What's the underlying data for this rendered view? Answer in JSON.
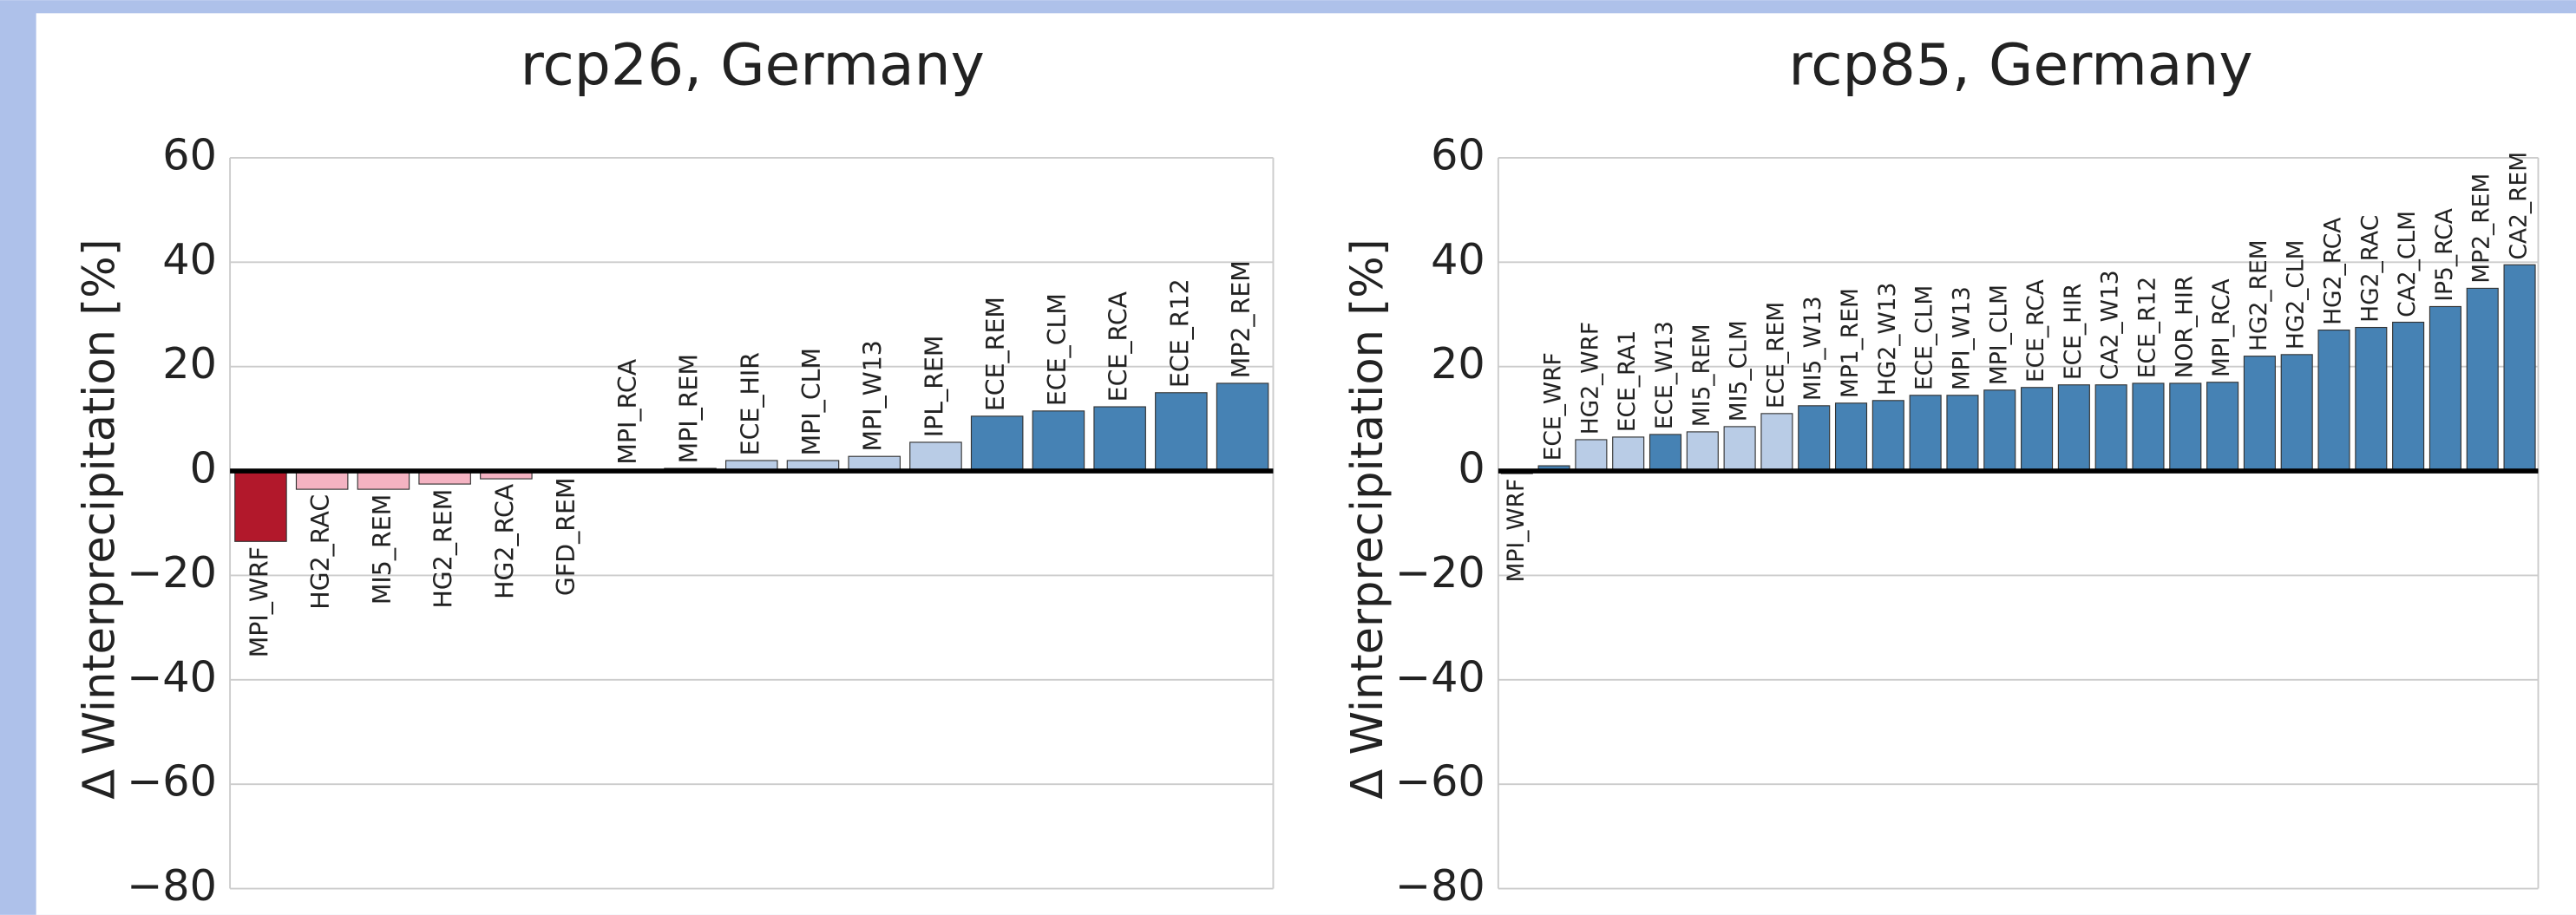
{
  "chart_data": [
    {
      "type": "bar",
      "title": "rcp26, Germany",
      "y_label": "Δ Winterprecipitation [%]",
      "categories": [
        "MPI_WRF",
        "HG2_RAC",
        "MI5_REM",
        "HG2_REM",
        "HG2_RCA",
        "GFD_REM",
        "MPI_RCA",
        "MPI_REM",
        "ECE_HIR",
        "MPI_CLM",
        "MPI_W13",
        "IPL_REM",
        "ECE_REM",
        "ECE_CLM",
        "ECE_RCA",
        "ECE_R12",
        "MP2_REM"
      ],
      "values": [
        -13.5,
        -3.5,
        -3.5,
        -2.5,
        -1.5,
        -0.3,
        0.3,
        0.5,
        2,
        2,
        2.8,
        5.5,
        10.5,
        11.5,
        12.3,
        15,
        16.8
      ],
      "colors": [
        "#b2182b",
        "#f4b3c2",
        "#f4b3c2",
        "#f4b3c2",
        "#f4b3c2",
        "#f4b3c2",
        "#b9cce6",
        "#b9cce6",
        "#b9cce6",
        "#b9cce6",
        "#b9cce6",
        "#b9cce6",
        "#4682b4",
        "#4682b4",
        "#4682b4",
        "#4682b4",
        "#4682b4"
      ],
      "ylim": [
        -80,
        60
      ],
      "yticks": [
        {
          "value": -80,
          "label": "−80"
        },
        {
          "value": -60,
          "label": "−60"
        },
        {
          "value": -40,
          "label": "−40"
        },
        {
          "value": -20,
          "label": "−20"
        },
        0,
        20,
        40,
        60
      ],
      "grid": true
    },
    {
      "type": "bar",
      "title": "rcp85, Germany",
      "y_label": "Δ Winterprecipitation [%]",
      "categories": [
        "MPI_WRF",
        "ECE_WRF",
        "HG2_WRF",
        "ECE_RA1",
        "ECE_W13",
        "MI5_REM",
        "MI5_CLM",
        "ECE_REM",
        "MI5_W13",
        "MP1_REM",
        "HG2_W13",
        "ECE_CLM",
        "MPI_W13",
        "MPI_CLM",
        "ECE_RCA",
        "ECE_HIR",
        "CA2_W13",
        "ECE_R12",
        "NOR_HIR",
        "MPI_RCA",
        "HG2_REM",
        "HG2_CLM",
        "HG2_RCA",
        "HG2_RAC",
        "CA2_CLM",
        "IP5_RCA",
        "MP2_REM",
        "CA2_REM"
      ],
      "values": [
        -0.5,
        1,
        6,
        6.5,
        7,
        7.5,
        8.5,
        11,
        12.5,
        13,
        13.5,
        14.5,
        14.5,
        15.5,
        16,
        16.5,
        16.5,
        16.8,
        16.8,
        17,
        22,
        22.3,
        27,
        27.5,
        28.5,
        31.5,
        35,
        39.5
      ],
      "colors": [
        "#f4b3c2",
        "#4682b4",
        "#b9cce6",
        "#b9cce6",
        "#4682b4",
        "#b9cce6",
        "#b9cce6",
        "#b9cce6",
        "#4682b4",
        "#4682b4",
        "#4682b4",
        "#4682b4",
        "#4682b4",
        "#4682b4",
        "#4682b4",
        "#4682b4",
        "#4682b4",
        "#4682b4",
        "#4682b4",
        "#4682b4",
        "#4682b4",
        "#4682b4",
        "#4682b4",
        "#4682b4",
        "#4682b4",
        "#4682b4",
        "#4682b4",
        "#4682b4"
      ],
      "ylim": [
        -80,
        60
      ],
      "yticks": [
        {
          "value": -80,
          "label": "−80"
        },
        {
          "value": -60,
          "label": "−60"
        },
        {
          "value": -40,
          "label": "−40"
        },
        {
          "value": -20,
          "label": "−20"
        },
        0,
        20,
        40,
        60
      ],
      "grid": true
    }
  ]
}
